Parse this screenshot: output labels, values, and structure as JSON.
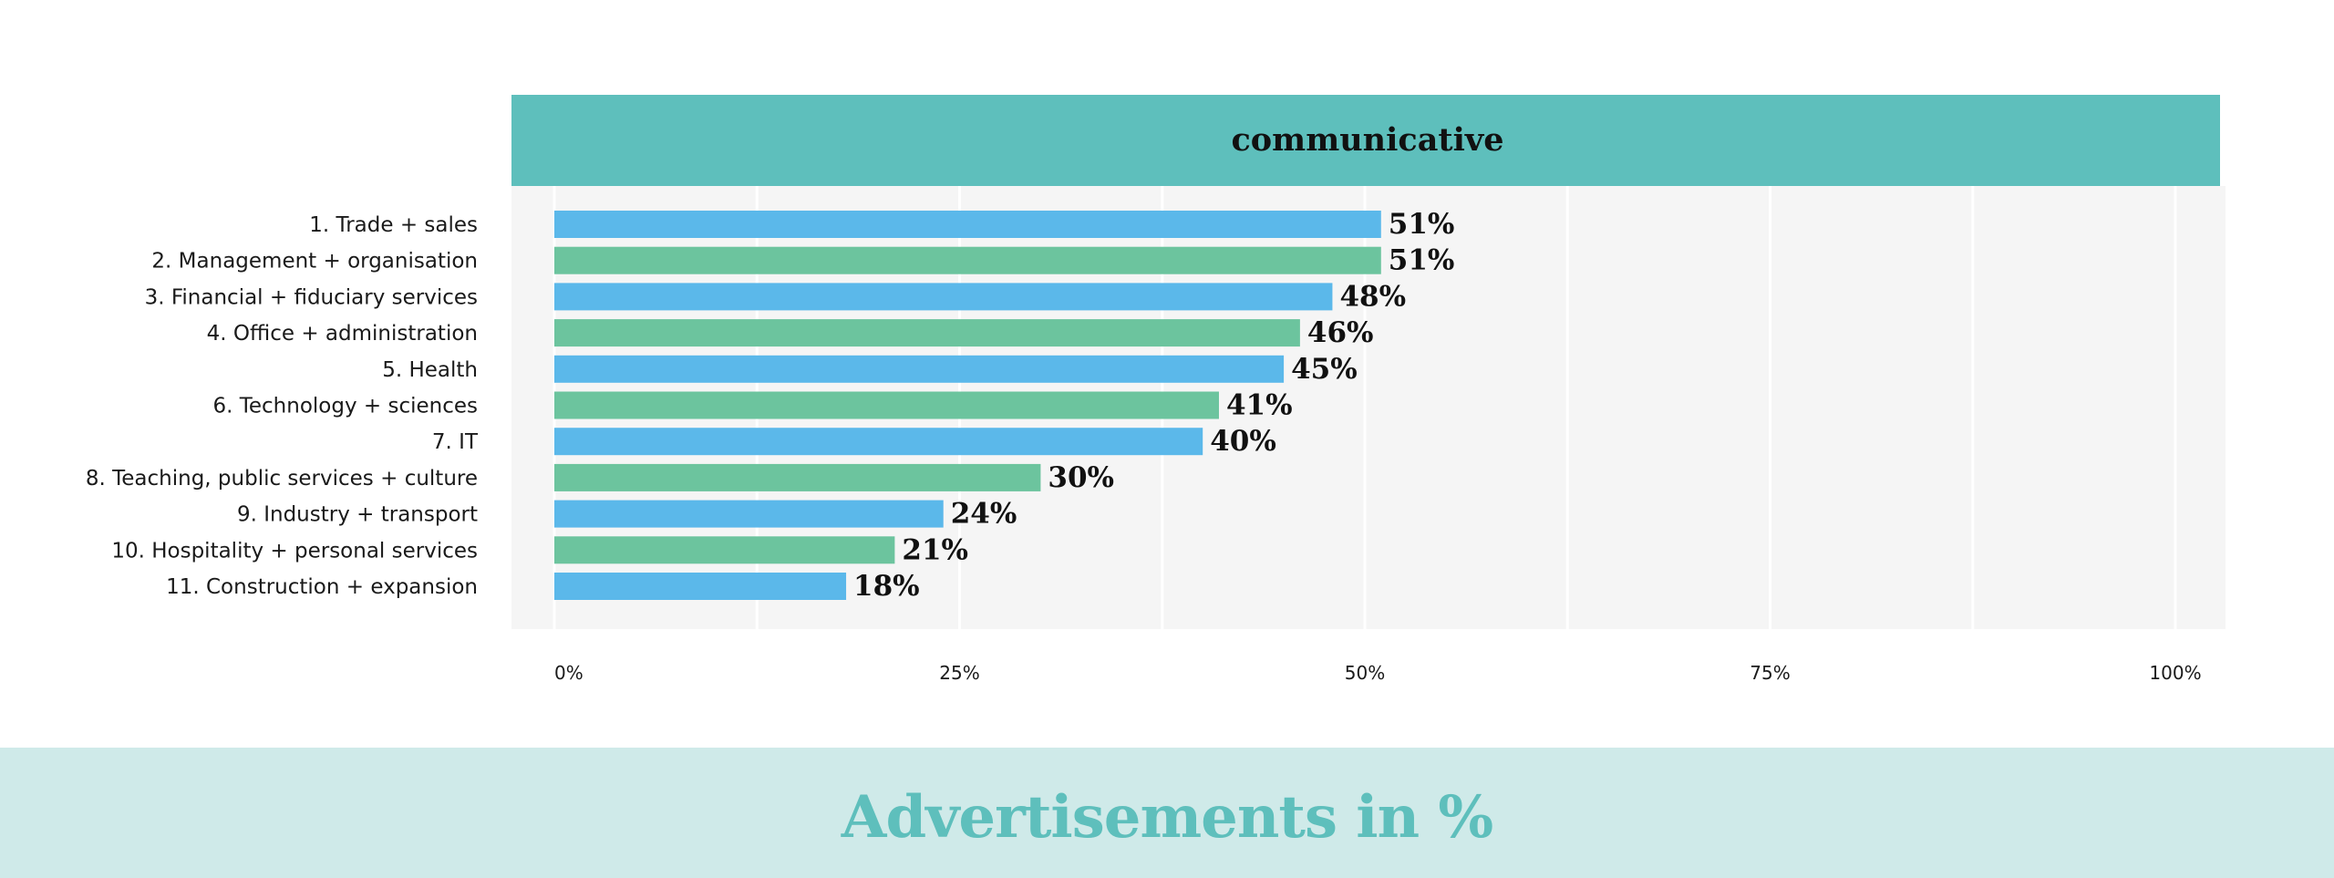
{
  "colors": {
    "header_bg": "#5ebfbc",
    "plot_bg": "#f5f5f5",
    "grid": "#ffffff",
    "bar_blue": "#5bb8ea",
    "bar_green": "#6cc49e",
    "footer_bg": "#cfeae9",
    "footer_text": "#5ebfbc"
  },
  "footer": {
    "title": "Advertisements in %"
  },
  "chart_data": {
    "type": "bar",
    "orientation": "horizontal",
    "title": "communicative",
    "categories": [
      "1. Trade + sales",
      "2. Management + organisation",
      "3. Financial + fiduciary services",
      "4. Office + administration",
      "5. Health",
      "6. Technology + sciences",
      "7. IT",
      "8. Teaching, public services + culture",
      "9. Industry + transport",
      "10. Hospitality + personal services",
      "11. Construction + expansion"
    ],
    "values": [
      51,
      51,
      48,
      46,
      45,
      41,
      40,
      30,
      24,
      21,
      18
    ],
    "value_labels": [
      "51%",
      "51%",
      "48%",
      "46%",
      "45%",
      "41%",
      "40%",
      "30%",
      "24%",
      "21%",
      "18%"
    ],
    "x_ticks": [
      0,
      25,
      50,
      75,
      100
    ],
    "x_tick_labels": [
      "0%",
      "25%",
      "50%",
      "75%",
      "100%"
    ],
    "xlim": [
      0,
      100
    ],
    "xlabel": "",
    "ylabel": "",
    "grid": true,
    "legend": "none"
  }
}
